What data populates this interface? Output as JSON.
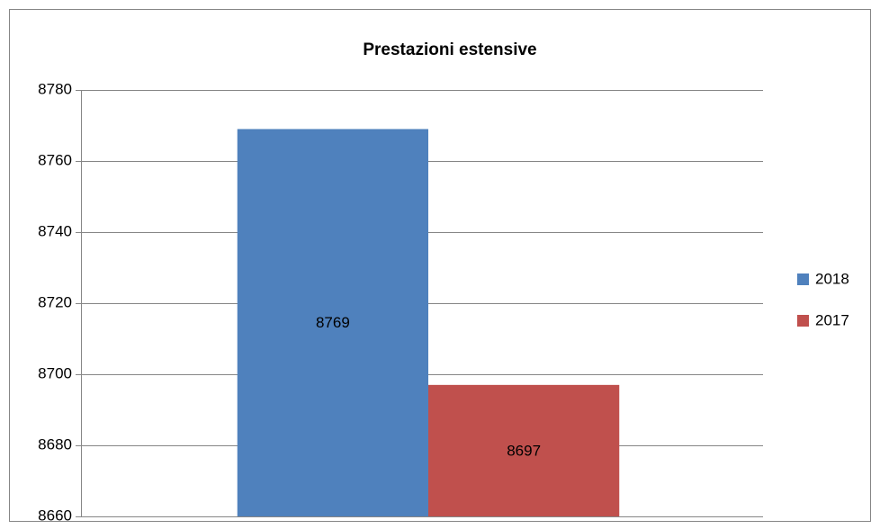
{
  "chart_data": {
    "type": "bar",
    "title": "Prestazioni estensive",
    "categories": [
      null
    ],
    "series": [
      {
        "name": "2018",
        "color": "#4f81bd",
        "values": [
          8769
        ]
      },
      {
        "name": "2017",
        "color": "#c0504d",
        "values": [
          8697
        ]
      }
    ],
    "ylim": [
      8660,
      8780
    ],
    "yticks": [
      8660,
      8680,
      8700,
      8720,
      8740,
      8760,
      8780
    ],
    "grid": true,
    "legend": "right"
  }
}
